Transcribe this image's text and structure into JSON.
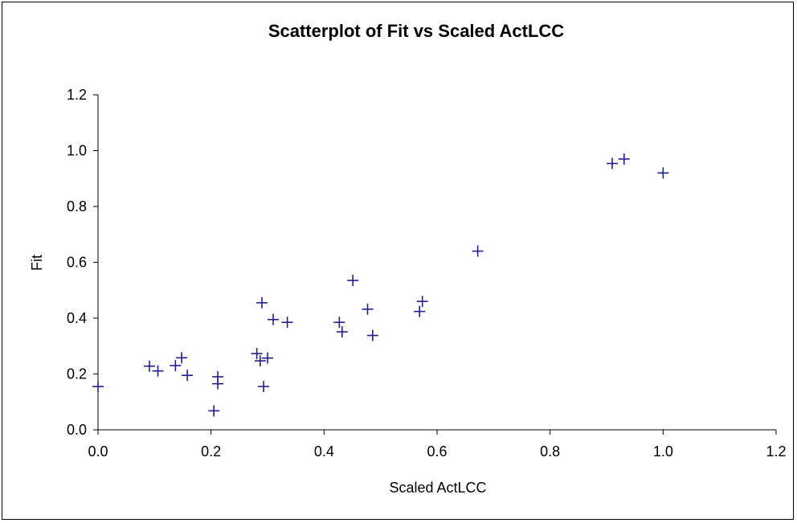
{
  "chart_data": {
    "type": "scatter",
    "title": "Scatterplot of Fit vs Scaled ActLCC",
    "xlabel": "Scaled ActLCC",
    "ylabel": "Fit",
    "xlim": [
      0.0,
      1.2
    ],
    "ylim": [
      0.0,
      1.2
    ],
    "x_ticks": [
      "0.0",
      "0.2",
      "0.4",
      "0.6",
      "0.8",
      "1.0",
      "1.2"
    ],
    "y_ticks": [
      "0.0",
      "0.2",
      "0.4",
      "0.6",
      "0.8",
      "1.0",
      "1.2"
    ],
    "grid": false,
    "legend": "none",
    "marker": "plus",
    "marker_color": "#1f1f8f",
    "points": [
      {
        "x": 0.0,
        "y": 0.155
      },
      {
        "x": 0.091,
        "y": 0.228
      },
      {
        "x": 0.106,
        "y": 0.211
      },
      {
        "x": 0.137,
        "y": 0.23
      },
      {
        "x": 0.148,
        "y": 0.258
      },
      {
        "x": 0.158,
        "y": 0.195
      },
      {
        "x": 0.205,
        "y": 0.068
      },
      {
        "x": 0.212,
        "y": 0.19
      },
      {
        "x": 0.212,
        "y": 0.165
      },
      {
        "x": 0.281,
        "y": 0.273
      },
      {
        "x": 0.287,
        "y": 0.247
      },
      {
        "x": 0.29,
        "y": 0.455
      },
      {
        "x": 0.293,
        "y": 0.155
      },
      {
        "x": 0.3,
        "y": 0.257
      },
      {
        "x": 0.31,
        "y": 0.395
      },
      {
        "x": 0.335,
        "y": 0.385
      },
      {
        "x": 0.427,
        "y": 0.385
      },
      {
        "x": 0.432,
        "y": 0.351
      },
      {
        "x": 0.451,
        "y": 0.535
      },
      {
        "x": 0.477,
        "y": 0.432
      },
      {
        "x": 0.486,
        "y": 0.338
      },
      {
        "x": 0.569,
        "y": 0.424
      },
      {
        "x": 0.574,
        "y": 0.46
      },
      {
        "x": 0.672,
        "y": 0.64
      },
      {
        "x": 0.91,
        "y": 0.954
      },
      {
        "x": 0.931,
        "y": 0.97
      },
      {
        "x": 1.0,
        "y": 0.92
      }
    ]
  }
}
